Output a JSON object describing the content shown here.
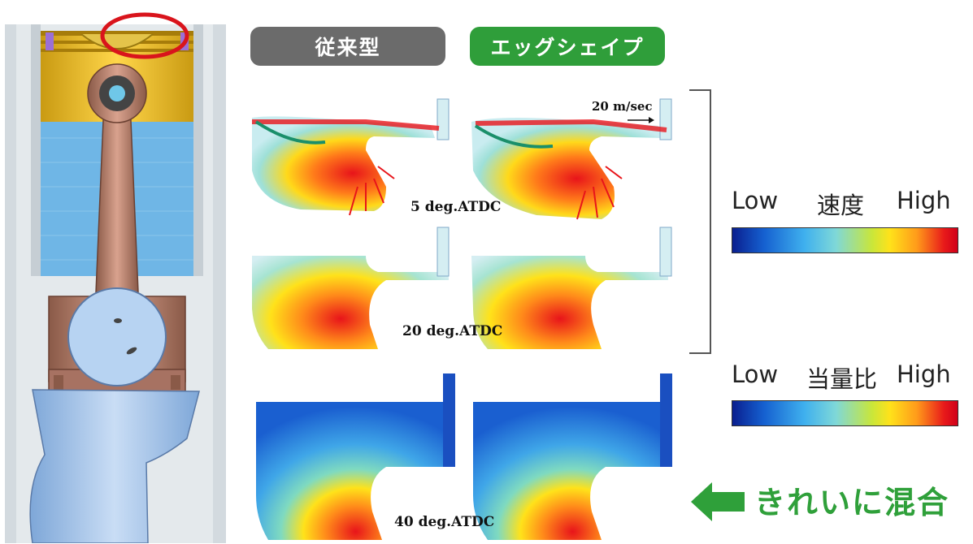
{
  "headers": {
    "conventional": "従来型",
    "eggshape": "エッグシェイプ"
  },
  "labels": {
    "velocity_scale": "20 m/sec",
    "deg5": "5 deg.ATDC",
    "deg20": "20 deg.ATDC",
    "deg40": "40 deg.ATDC"
  },
  "legend_velocity": {
    "low": "Low",
    "title": "速度",
    "high": "High"
  },
  "legend_ratio": {
    "low": "Low",
    "title": "当量比",
    "high": "High"
  },
  "callout": "きれいに混合",
  "colors": {
    "conventional_pill": "#6b6b6b",
    "eggshape_pill": "#2f9e3a",
    "callout_green": "#2fa03a",
    "highlight_circle": "#d9141c"
  }
}
